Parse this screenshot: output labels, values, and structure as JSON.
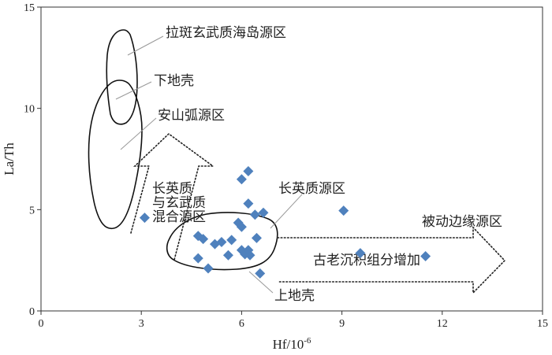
{
  "chart_data": {
    "type": "scatter",
    "xlabel": "Hf/10",
    "xlabel_sup": "-6",
    "ylabel": "La/Th",
    "xlim": [
      0,
      15
    ],
    "ylim": [
      0,
      15
    ],
    "xticks": [
      0,
      3,
      6,
      9,
      12,
      15
    ],
    "yticks": [
      0,
      5,
      10,
      15
    ],
    "grid": false,
    "marker": "diamond",
    "marker_color": "#4f81bd",
    "points": [
      {
        "x": 3.1,
        "y": 4.6
      },
      {
        "x": 4.7,
        "y": 3.7
      },
      {
        "x": 4.85,
        "y": 3.55
      },
      {
        "x": 4.7,
        "y": 2.6
      },
      {
        "x": 5.0,
        "y": 2.1
      },
      {
        "x": 5.2,
        "y": 3.3
      },
      {
        "x": 5.4,
        "y": 3.4
      },
      {
        "x": 5.6,
        "y": 2.75
      },
      {
        "x": 5.7,
        "y": 3.5
      },
      {
        "x": 5.9,
        "y": 4.35
      },
      {
        "x": 6.0,
        "y": 4.15
      },
      {
        "x": 6.0,
        "y": 3.0
      },
      {
        "x": 6.1,
        "y": 2.8
      },
      {
        "x": 6.2,
        "y": 3.0
      },
      {
        "x": 6.25,
        "y": 2.75
      },
      {
        "x": 6.0,
        "y": 6.5
      },
      {
        "x": 6.2,
        "y": 6.9
      },
      {
        "x": 6.2,
        "y": 5.3
      },
      {
        "x": 6.4,
        "y": 4.75
      },
      {
        "x": 6.65,
        "y": 4.85
      },
      {
        "x": 6.45,
        "y": 3.6
      },
      {
        "x": 6.55,
        "y": 1.85
      },
      {
        "x": 9.05,
        "y": 4.95
      },
      {
        "x": 9.55,
        "y": 2.85
      },
      {
        "x": 11.5,
        "y": 2.7
      }
    ],
    "regions": [
      {
        "name": "拉斑玄武质海岛源区"
      },
      {
        "name": "下地壳"
      },
      {
        "name": "安山弧源区"
      },
      {
        "name": "长英质与玄武质混合源区",
        "lines": [
          "长英质",
          "与玄武质",
          "混合源区"
        ]
      },
      {
        "name": "长英质源区"
      },
      {
        "name": "被动边缘源区"
      },
      {
        "name": "古老沉积组分增加"
      },
      {
        "name": "上地壳"
      }
    ]
  }
}
